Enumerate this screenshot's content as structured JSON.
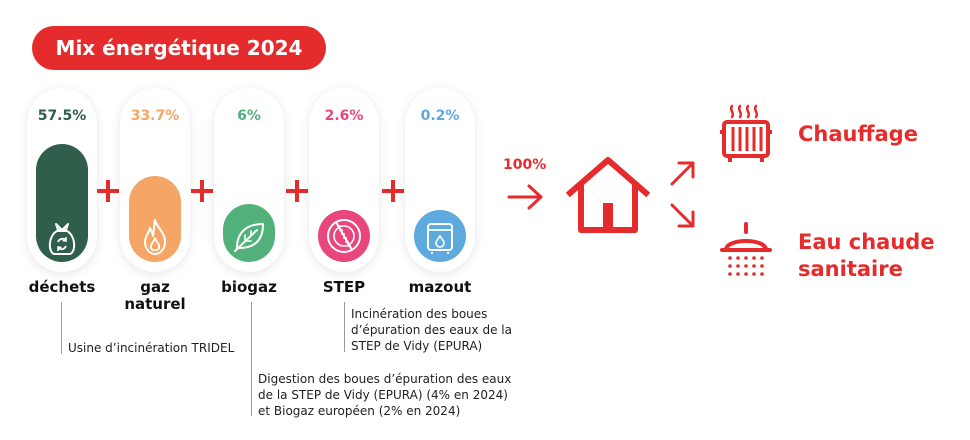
{
  "title": "Mix énergétique 2024",
  "sources": [
    {
      "key": "dechets",
      "percent": "57.5%",
      "value": 57.5,
      "color": "#2f5e4b",
      "pct_color": "#2f5e4b",
      "label": "déchets",
      "icon": "waste-bag-recycle-icon"
    },
    {
      "key": "gaz",
      "percent": "33.7%",
      "value": 33.7,
      "color": "#f5a667",
      "pct_color": "#f5a667",
      "label_line1": "gaz",
      "label_line2": "naturel",
      "icon": "flame-icon"
    },
    {
      "key": "biogaz",
      "percent": "6%",
      "value": 6,
      "color": "#52b17a",
      "pct_color": "#52b17a",
      "label": "biogaz",
      "icon": "leaf-icon"
    },
    {
      "key": "step",
      "percent": "2.6%",
      "value": 2.6,
      "color": "#e8467d",
      "pct_color": "#e8467d",
      "label": "STEP",
      "icon": "step-filter-icon"
    },
    {
      "key": "mazout",
      "percent": "0.2%",
      "value": 0.2,
      "color": "#5ea9dd",
      "pct_color": "#5ea9dd",
      "label": "mazout",
      "icon": "oil-tank-icon"
    }
  ],
  "notes": {
    "dechets": "Usine d’incinération TRIDEL",
    "biogaz": [
      "Digestion des boues d’épuration des eaux",
      "de la STEP de Vidy (EPURA) (4% en 2024)",
      "et Biogaz européen (2% en 2024)"
    ],
    "step": [
      "Incinération des boues",
      "d’épuration des eaux de la",
      "STEP de Vidy (EPURA)"
    ]
  },
  "total_label": "100%",
  "outputs": {
    "heating": "Chauffage",
    "hot_water_line1": "Eau chaude",
    "hot_water_line2": "sanitaire"
  },
  "accent_color": "#e52b2b",
  "icons": [
    "house-icon",
    "arrow-right-icon",
    "arrow-up-right-icon",
    "arrow-down-right-icon",
    "radiator-icon",
    "shower-icon"
  ]
}
